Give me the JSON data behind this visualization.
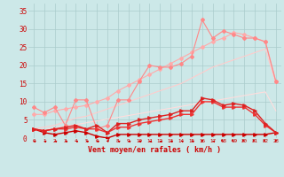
{
  "background_color": "#cce8e8",
  "grid_color": "#aacccc",
  "xlabel": "Vent moyen/en rafales ( km/h )",
  "x_ticks": [
    0,
    1,
    2,
    3,
    4,
    5,
    6,
    7,
    8,
    9,
    10,
    11,
    12,
    13,
    14,
    15,
    16,
    17,
    18,
    19,
    20,
    21,
    22,
    23
  ],
  "ylim": [
    0,
    37
  ],
  "xlim": [
    -0.5,
    23.5
  ],
  "yticks": [
    0,
    5,
    10,
    15,
    20,
    25,
    30,
    35
  ],
  "line_pink_jagged": {
    "color": "#ff8888",
    "lw": 0.8,
    "marker": "D",
    "markersize": 2.0,
    "y": [
      8.5,
      7.0,
      8.5,
      3.5,
      10.5,
      10.5,
      2.5,
      3.5,
      10.5,
      10.5,
      15.5,
      20.0,
      19.5,
      19.5,
      20.5,
      22.5,
      32.5,
      27.5,
      29.5,
      28.5,
      27.5,
      27.5,
      26.5,
      15.5
    ]
  },
  "line_pink_upper": {
    "color": "#ffaaaa",
    "lw": 0.8,
    "marker": "D",
    "markersize": 2.0,
    "y": [
      6.5,
      6.5,
      7.5,
      8.0,
      8.5,
      9.0,
      10.0,
      11.0,
      13.0,
      14.5,
      16.0,
      17.5,
      19.0,
      20.5,
      22.0,
      23.5,
      25.0,
      26.5,
      27.5,
      29.0,
      28.5,
      27.5,
      26.5,
      15.5
    ]
  },
  "line_pink_mid": {
    "color": "#ffcccc",
    "lw": 0.8,
    "marker": null,
    "y": [
      2.5,
      3.0,
      3.5,
      4.5,
      5.5,
      6.0,
      7.0,
      8.0,
      9.0,
      10.0,
      11.0,
      12.0,
      13.0,
      14.0,
      15.0,
      16.5,
      18.0,
      19.5,
      20.5,
      21.5,
      22.5,
      23.5,
      24.5,
      15.0
    ]
  },
  "line_pink_low": {
    "color": "#ffdddd",
    "lw": 0.8,
    "marker": null,
    "y": [
      2.0,
      2.3,
      2.7,
      3.2,
      3.7,
      4.2,
      4.7,
      5.2,
      5.7,
      6.2,
      6.7,
      7.2,
      7.7,
      8.2,
      8.7,
      9.2,
      9.7,
      10.2,
      10.7,
      11.2,
      11.7,
      12.2,
      12.7,
      7.5
    ]
  },
  "line_red_flat": {
    "color": "#cc0000",
    "lw": 1.0,
    "marker": ">",
    "markersize": 2.5,
    "y": [
      2.5,
      1.5,
      1.0,
      1.5,
      2.0,
      1.5,
      0.5,
      0.0,
      1.0,
      1.0,
      1.0,
      1.0,
      1.0,
      1.0,
      1.0,
      1.0,
      1.0,
      1.0,
      1.0,
      1.0,
      1.0,
      1.0,
      1.0,
      1.5
    ]
  },
  "line_red_upper": {
    "color": "#dd2222",
    "lw": 1.0,
    "marker": ">",
    "markersize": 2.5,
    "y": [
      2.5,
      2.0,
      2.5,
      3.0,
      3.5,
      2.5,
      3.5,
      1.5,
      4.0,
      4.0,
      5.0,
      5.5,
      6.0,
      6.5,
      7.5,
      7.5,
      11.0,
      10.5,
      9.0,
      9.5,
      9.0,
      7.5,
      4.0,
      1.5
    ]
  },
  "line_red_mid": {
    "color": "#ee3333",
    "lw": 1.0,
    "marker": ">",
    "markersize": 2.5,
    "y": [
      2.5,
      2.0,
      2.5,
      2.5,
      3.0,
      2.5,
      2.5,
      1.5,
      3.0,
      3.0,
      4.0,
      4.5,
      5.0,
      5.5,
      6.5,
      6.5,
      10.0,
      10.0,
      8.5,
      8.5,
      8.5,
      6.5,
      3.5,
      1.5
    ]
  }
}
